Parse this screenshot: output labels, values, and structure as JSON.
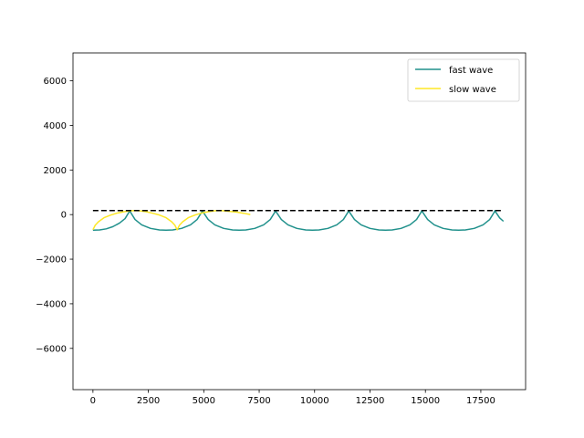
{
  "chart_data": {
    "type": "line",
    "title": "",
    "xlabel": "",
    "ylabel": "",
    "xlim": [
      -900,
      19520
    ],
    "ylim": [
      -7850,
      7250
    ],
    "grid": false,
    "legend_position": "top-right",
    "x_ticks": [
      0,
      2500,
      5000,
      7500,
      10000,
      12500,
      15000,
      17500
    ],
    "y_ticks": [
      -6000,
      -4000,
      -2000,
      0,
      2000,
      4000,
      6000
    ],
    "x_tick_labels": [
      "0",
      "2500",
      "5000",
      "7500",
      "10000",
      "12500",
      "15000",
      "17500"
    ],
    "y_tick_labels": [
      "−6000",
      "−4000",
      "−2000",
      "0",
      "2000",
      "4000",
      "6000"
    ],
    "series": [
      {
        "name": "fast wave",
        "color": "#21918c",
        "style": "solid",
        "points": [
          [
            0,
            -700
          ],
          [
            300,
            -690
          ],
          [
            600,
            -640
          ],
          [
            900,
            -540
          ],
          [
            1200,
            -380
          ],
          [
            1450,
            -180
          ],
          [
            1620,
            100
          ],
          [
            1660,
            180
          ],
          [
            1700,
            100
          ],
          [
            1900,
            -220
          ],
          [
            2200,
            -460
          ],
          [
            2600,
            -620
          ],
          [
            3000,
            -690
          ],
          [
            3300,
            -700
          ],
          [
            3600,
            -690
          ],
          [
            4000,
            -620
          ],
          [
            4400,
            -460
          ],
          [
            4700,
            -220
          ],
          [
            4900,
            100
          ],
          [
            4940,
            180
          ],
          [
            4980,
            100
          ],
          [
            5200,
            -220
          ],
          [
            5500,
            -460
          ],
          [
            5900,
            -620
          ],
          [
            6300,
            -690
          ],
          [
            6600,
            -700
          ],
          [
            6900,
            -690
          ],
          [
            7300,
            -620
          ],
          [
            7700,
            -460
          ],
          [
            8000,
            -220
          ],
          [
            8200,
            100
          ],
          [
            8240,
            180
          ],
          [
            8280,
            100
          ],
          [
            8500,
            -220
          ],
          [
            8800,
            -460
          ],
          [
            9200,
            -620
          ],
          [
            9600,
            -690
          ],
          [
            9900,
            -700
          ],
          [
            10200,
            -690
          ],
          [
            10600,
            -620
          ],
          [
            11000,
            -460
          ],
          [
            11300,
            -220
          ],
          [
            11500,
            100
          ],
          [
            11540,
            180
          ],
          [
            11580,
            100
          ],
          [
            11800,
            -220
          ],
          [
            12100,
            -460
          ],
          [
            12500,
            -620
          ],
          [
            12900,
            -690
          ],
          [
            13200,
            -700
          ],
          [
            13500,
            -690
          ],
          [
            13900,
            -620
          ],
          [
            14300,
            -460
          ],
          [
            14600,
            -220
          ],
          [
            14800,
            100
          ],
          [
            14840,
            180
          ],
          [
            14880,
            100
          ],
          [
            15100,
            -220
          ],
          [
            15400,
            -460
          ],
          [
            15800,
            -620
          ],
          [
            16200,
            -690
          ],
          [
            16500,
            -700
          ],
          [
            16800,
            -690
          ],
          [
            17200,
            -620
          ],
          [
            17600,
            -460
          ],
          [
            17900,
            -220
          ],
          [
            18100,
            100
          ],
          [
            18140,
            180
          ],
          [
            18180,
            100
          ],
          [
            18350,
            -150
          ],
          [
            18520,
            -300
          ]
        ]
      },
      {
        "name": "slow wave",
        "color": "#fde725",
        "style": "solid",
        "points": [
          [
            0,
            -680
          ],
          [
            100,
            -480
          ],
          [
            250,
            -320
          ],
          [
            500,
            -140
          ],
          [
            800,
            -20
          ],
          [
            1100,
            70
          ],
          [
            1400,
            130
          ],
          [
            1700,
            170
          ],
          [
            1900,
            180
          ],
          [
            2100,
            170
          ],
          [
            2400,
            130
          ],
          [
            2700,
            60
          ],
          [
            3000,
            -20
          ],
          [
            3300,
            -140
          ],
          [
            3550,
            -320
          ],
          [
            3700,
            -480
          ],
          [
            3800,
            -680
          ],
          [
            3900,
            -480
          ],
          [
            4050,
            -320
          ],
          [
            4300,
            -140
          ],
          [
            4600,
            -20
          ],
          [
            4900,
            70
          ],
          [
            5200,
            130
          ],
          [
            5500,
            170
          ],
          [
            5700,
            180
          ],
          [
            5900,
            170
          ],
          [
            6200,
            140
          ],
          [
            6500,
            110
          ],
          [
            6800,
            60
          ],
          [
            7100,
            0
          ]
        ]
      },
      {
        "name": "",
        "color": "#000000",
        "style": "dashed",
        "points": [
          [
            0,
            180
          ],
          [
            18520,
            180
          ]
        ]
      }
    ]
  }
}
